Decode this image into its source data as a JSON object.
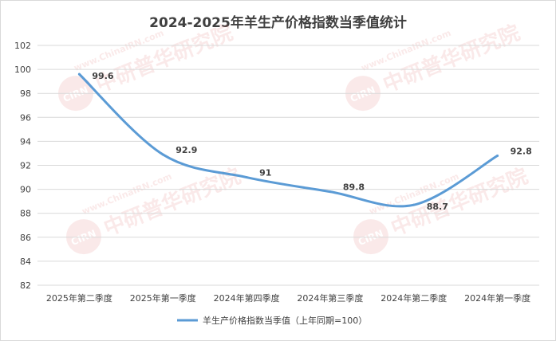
{
  "chart_data": {
    "type": "line",
    "title": "2024-2025年羊生产价格指数当季值统计",
    "categories": [
      "2025年第二季度",
      "2025年第一季度",
      "2024年第四季度",
      "2024年第三季度",
      "2024年第二季度",
      "2024年第一季度"
    ],
    "series": [
      {
        "name": "羊生产价格指数当季值（上年同期=100）",
        "values": [
          99.6,
          92.9,
          91,
          89.8,
          88.7,
          92.8
        ],
        "color": "#5b9bd5"
      }
    ],
    "value_labels": [
      "99.6",
      "92.9",
      "91",
      "89.8",
      "88.7",
      "92.8"
    ],
    "yticks": [
      "82",
      "84",
      "86",
      "88",
      "90",
      "92",
      "94",
      "96",
      "98",
      "100",
      "102"
    ],
    "ylim": [
      82,
      102
    ],
    "grid": true,
    "legend_position": "bottom",
    "smooth": true
  },
  "watermark": {
    "brand": "中研普华研究院",
    "url": "www.ChinaIRN.com",
    "logo": "CIRN"
  }
}
